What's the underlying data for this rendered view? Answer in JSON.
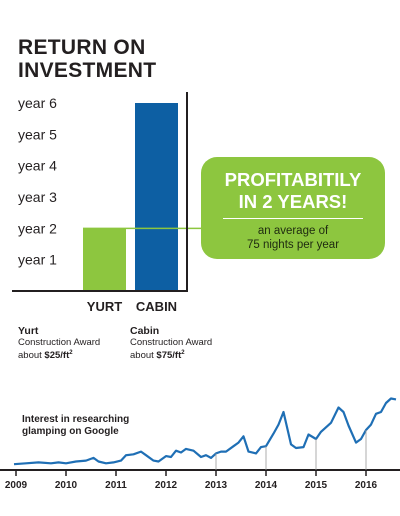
{
  "title": {
    "line1": "RETURN ON",
    "line2": "INVESTMENT"
  },
  "colors": {
    "yurt": "#8dc63f",
    "cabin": "#0d5fa3",
    "line": "#1f6fb5",
    "axis": "#231f20",
    "callout": "#8dc63f"
  },
  "callout": {
    "headline1": "PROFITABITILY",
    "headline2": "IN 2 YEARS!",
    "sub1": "an average of",
    "sub2": "75 nights per year"
  },
  "awards": [
    {
      "name": "Yurt",
      "label": "Construction Award",
      "prefix": "about ",
      "value": "$25/ft",
      "exp": "2"
    },
    {
      "name": "Cabin",
      "label": "Construction Award",
      "prefix": "about ",
      "value": "$75/ft",
      "exp": "2"
    }
  ],
  "interest": {
    "line1": "Interest in researching",
    "line2": "glamping on Google"
  },
  "chart_data": [
    {
      "type": "bar",
      "title": "RETURN ON INVESTMENT",
      "categories": [
        "YURT",
        "CABIN"
      ],
      "values": [
        2,
        6
      ],
      "ytick_labels": [
        "year 1",
        "year 2",
        "year 3",
        "year 4",
        "year 5",
        "year 6"
      ],
      "ylim": [
        0,
        6
      ],
      "grid": false,
      "reference_line": 2
    },
    {
      "type": "line",
      "title": "Interest in researching glamping on Google",
      "x_ticks": [
        "2009",
        "2010",
        "2011",
        "2012",
        "2013",
        "2014",
        "2015",
        "2016"
      ],
      "x": [
        2008.96,
        2009.2,
        2009.45,
        2009.7,
        2009.85,
        2010.0,
        2010.2,
        2010.4,
        2010.55,
        2010.65,
        2010.8,
        2010.95,
        2011.1,
        2011.2,
        2011.35,
        2011.5,
        2011.6,
        2011.75,
        2011.85,
        2012.0,
        2012.1,
        2012.2,
        2012.3,
        2012.4,
        2012.55,
        2012.7,
        2012.8,
        2012.9,
        2013.0,
        2013.1,
        2013.2,
        2013.35,
        2013.45,
        2013.55,
        2013.65,
        2013.8,
        2013.9,
        2014.0,
        2014.15,
        2014.25,
        2014.35,
        2014.5,
        2014.6,
        2014.75,
        2014.85,
        2015.0,
        2015.1,
        2015.2,
        2015.3,
        2015.45,
        2015.55,
        2015.65,
        2015.8,
        2015.9,
        2016.0,
        2016.1,
        2016.2,
        2016.3,
        2016.4,
        2016.5,
        2016.6
      ],
      "y": [
        2,
        3,
        4,
        3,
        4,
        3,
        5,
        6,
        9,
        5,
        3,
        4,
        6,
        12,
        13,
        16,
        12,
        6,
        5,
        11,
        10,
        17,
        15,
        19,
        17,
        10,
        12,
        9,
        14,
        16,
        16,
        22,
        26,
        33,
        16,
        14,
        21,
        22,
        36,
        46,
        60,
        24,
        20,
        21,
        35,
        30,
        38,
        43,
        48,
        65,
        60,
        45,
        26,
        30,
        40,
        46,
        58,
        60,
        70,
        75,
        74
      ],
      "ylim": [
        0,
        80
      ],
      "grid": false
    }
  ]
}
